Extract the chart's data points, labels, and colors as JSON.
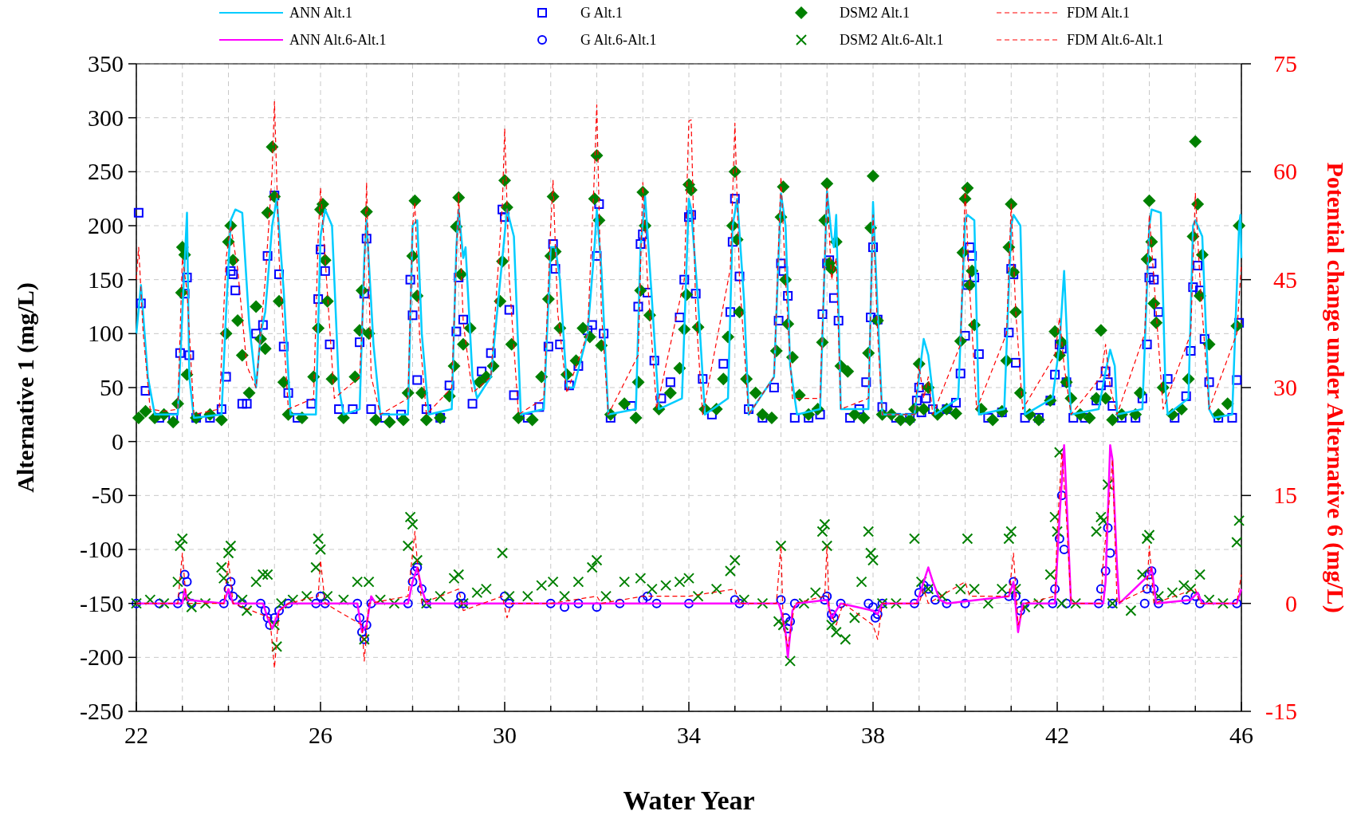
{
  "chart_data": {
    "type": "line",
    "xlabel": "Water Year",
    "ylabel": "Alternative 1 (mg/L)",
    "y2label": "Potential change under Alternative 6 (mg/L)",
    "xlim": [
      22,
      46
    ],
    "xticks": [
      22,
      {
        "value": 23,
        "label": null
      },
      {
        "value": 24,
        "label": null
      },
      {
        "value": 25,
        "label": null
      },
      26,
      {
        "value": 27,
        "label": null
      },
      {
        "value": 28,
        "label": null
      },
      {
        "value": 29,
        "label": null
      },
      30,
      {
        "value": 31,
        "label": null
      },
      {
        "value": 32,
        "label": null
      },
      {
        "value": 33,
        "label": null
      },
      34,
      {
        "value": 35,
        "label": null
      },
      {
        "value": 36,
        "label": null
      },
      {
        "value": 37,
        "label": null
      },
      38,
      {
        "value": 39,
        "label": null
      },
      {
        "value": 40,
        "label": null
      },
      {
        "value": 41,
        "label": null
      },
      42,
      {
        "value": 43,
        "label": null
      },
      {
        "value": 44,
        "label": null
      },
      {
        "value": 45,
        "label": null
      },
      46
    ],
    "ylim": [
      -250,
      350
    ],
    "yticks": [
      -250,
      -200,
      -150,
      -100,
      -50,
      0,
      50,
      100,
      150,
      200,
      250,
      300,
      350
    ],
    "y2lim": [
      -15,
      75
    ],
    "y2ticks": [
      -15,
      0,
      15,
      30,
      45,
      60,
      75
    ],
    "grid": true,
    "legend": "top",
    "series": [
      {
        "name": "ANN Alt.1",
        "color": "#00ccff",
        "marker": "none",
        "line_style": "solid",
        "x": [
          22.0,
          22.1,
          22.25,
          22.4,
          22.9,
          23.0,
          23.1,
          23.15,
          23.25,
          23.85,
          23.95,
          24.05,
          24.15,
          24.3,
          24.45,
          24.6,
          24.7,
          24.8,
          24.95,
          25.05,
          25.2,
          25.35,
          25.9,
          26.0,
          26.1,
          26.25,
          26.4,
          26.5,
          26.85,
          26.95,
          27.0,
          27.15,
          27.3,
          27.9,
          28.0,
          28.1,
          28.2,
          28.35,
          28.85,
          28.95,
          29.0,
          29.1,
          29.15,
          29.3,
          29.4,
          29.7,
          29.95,
          30.05,
          30.2,
          30.35,
          30.85,
          31.0,
          31.1,
          31.2,
          31.35,
          31.5,
          31.8,
          31.95,
          32.0,
          32.1,
          32.25,
          32.85,
          32.95,
          33.05,
          33.2,
          33.35,
          33.85,
          34.0,
          34.05,
          34.2,
          34.35,
          34.85,
          34.95,
          35.05,
          35.2,
          35.3,
          35.85,
          36.0,
          36.1,
          36.2,
          36.35,
          36.85,
          37.0,
          37.1,
          37.15,
          37.2,
          37.3,
          37.9,
          38.0,
          38.1,
          38.2,
          38.9,
          39.1,
          39.2,
          39.35,
          39.85,
          40.0,
          40.05,
          40.2,
          40.3,
          40.85,
          41.0,
          41.05,
          41.2,
          41.3,
          41.9,
          42.05,
          42.15,
          42.25,
          42.3,
          42.9,
          43.05,
          43.15,
          43.25,
          43.3,
          43.85,
          44.0,
          44.05,
          44.25,
          44.35,
          44.4,
          44.85,
          44.95,
          45.0,
          45.15,
          45.3,
          45.4,
          45.8,
          45.95,
          45.98,
          46.0
        ],
        "values": [
          100,
          145,
          60,
          25,
          25,
          120,
          212,
          60,
          22,
          25,
          120,
          205,
          215,
          212,
          110,
          50,
          100,
          120,
          200,
          225,
          140,
          25,
          25,
          190,
          215,
          200,
          50,
          25,
          30,
          170,
          205,
          90,
          25,
          25,
          200,
          205,
          100,
          25,
          30,
          180,
          215,
          170,
          180,
          60,
          40,
          60,
          170,
          215,
          190,
          25,
          30,
          180,
          180,
          150,
          50,
          50,
          100,
          180,
          215,
          160,
          25,
          30,
          180,
          227,
          130,
          30,
          40,
          225,
          215,
          130,
          25,
          40,
          200,
          225,
          130,
          25,
          60,
          230,
          200,
          70,
          25,
          30,
          232,
          190,
          180,
          210,
          30,
          30,
          222,
          120,
          25,
          25,
          95,
          80,
          25,
          40,
          205,
          210,
          205,
          25,
          30,
          200,
          210,
          200,
          25,
          40,
          90,
          158,
          60,
          25,
          30,
          65,
          85,
          70,
          25,
          30,
          200,
          215,
          212,
          50,
          25,
          40,
          200,
          205,
          190,
          30,
          22,
          25,
          200,
          210,
          170
        ]
      },
      {
        "name": "ANN Alt.6-Alt.1",
        "axis": "y2",
        "color": "#ff00ff",
        "marker": "none",
        "line_style": "solid",
        "x": [
          22.0,
          23.0,
          23.05,
          23.1,
          23.9,
          24.0,
          24.1,
          24.75,
          24.85,
          24.95,
          25.1,
          25.3,
          26.8,
          26.9,
          27.0,
          27.1,
          27.2,
          27.9,
          28.0,
          28.1,
          28.2,
          28.3,
          35.95,
          36.0,
          36.1,
          36.15,
          36.25,
          36.35,
          37.0,
          37.1,
          37.3,
          38.0,
          38.1,
          38.2,
          38.95,
          39.1,
          39.2,
          39.3,
          39.45,
          39.6,
          40.95,
          41.05,
          41.15,
          41.25,
          41.95,
          42.05,
          42.15,
          42.2,
          42.3,
          43.0,
          43.05,
          43.15,
          43.2,
          43.3,
          43.35,
          44.0,
          44.05,
          44.15,
          44.9,
          45.05,
          45.15,
          45.9,
          46.0
        ],
        "values": [
          0,
          0,
          2,
          0.5,
          0,
          2,
          0,
          0,
          -2,
          -3.5,
          -1,
          0,
          0,
          -4,
          -3,
          1,
          0,
          0,
          3,
          5,
          2,
          0,
          0,
          -1,
          -4,
          -7.5,
          -1,
          0,
          0.5,
          -2,
          0,
          -1,
          -1.5,
          0,
          0,
          3,
          5,
          3,
          0.5,
          0,
          1,
          3,
          -4,
          0,
          0,
          12,
          22,
          15,
          0,
          0,
          3,
          22,
          20,
          5,
          0,
          4,
          5,
          0,
          0.5,
          1.5,
          0,
          0,
          2
        ]
      },
      {
        "name": "G Alt.1",
        "type": "scatter",
        "color": "#0000ff",
        "marker": "square",
        "x": [
          22.05,
          22.1,
          22.2,
          22.5,
          22.8,
          22.95,
          23.05,
          23.1,
          23.15,
          23.3,
          23.6,
          23.85,
          23.95,
          24.05,
          24.1,
          24.15,
          24.3,
          24.4,
          24.6,
          24.75,
          24.85,
          25.0,
          25.1,
          25.2,
          25.3,
          25.5,
          25.8,
          25.95,
          26.0,
          26.1,
          26.2,
          26.4,
          26.7,
          26.85,
          26.95,
          27.0,
          27.1,
          27.4,
          27.75,
          27.95,
          28.0,
          28.1,
          28.3,
          28.6,
          28.8,
          28.95,
          29.0,
          29.1,
          29.3,
          29.5,
          29.7,
          29.95,
          30.0,
          30.1,
          30.2,
          30.5,
          30.75,
          30.95,
          31.05,
          31.1,
          31.2,
          31.4,
          31.6,
          31.8,
          31.9,
          32.0,
          32.05,
          32.15,
          32.3,
          32.75,
          32.9,
          32.95,
          33.0,
          33.1,
          33.25,
          33.4,
          33.6,
          33.8,
          33.9,
          34.0,
          34.05,
          34.15,
          34.3,
          34.5,
          34.75,
          34.9,
          34.95,
          35.0,
          35.1,
          35.3,
          35.6,
          35.85,
          35.95,
          36.0,
          36.05,
          36.15,
          36.3,
          36.6,
          36.85,
          36.9,
          37.0,
          37.05,
          37.15,
          37.25,
          37.5,
          37.7,
          37.85,
          37.95,
          38.0,
          38.1,
          38.2,
          38.5,
          38.8,
          38.95,
          39.0,
          39.05,
          39.15,
          39.3,
          39.6,
          39.8,
          39.9,
          40.0,
          40.05,
          40.1,
          40.15,
          40.2,
          40.3,
          40.5,
          40.8,
          40.95,
          41.0,
          41.05,
          41.1,
          41.3,
          41.6,
          41.85,
          41.95,
          42.05,
          42.1,
          42.2,
          42.35,
          42.6,
          42.85,
          42.95,
          43.05,
          43.1,
          43.2,
          43.4,
          43.7,
          43.85,
          43.95,
          44.0,
          44.05,
          44.1,
          44.2,
          44.4,
          44.55,
          44.8,
          44.9,
          44.95,
          45.05,
          45.1,
          45.2,
          45.3,
          45.5,
          45.8,
          45.9,
          45.95
        ],
        "values": [
          212,
          128,
          47,
          22,
          22,
          82,
          137,
          152,
          80,
          22,
          22,
          30,
          60,
          158,
          155,
          140,
          35,
          35,
          100,
          108,
          172,
          228,
          155,
          88,
          45,
          22,
          35,
          132,
          178,
          158,
          90,
          30,
          30,
          92,
          137,
          188,
          30,
          22,
          25,
          150,
          117,
          57,
          30,
          22,
          52,
          102,
          152,
          113,
          35,
          65,
          82,
          215,
          208,
          122,
          43,
          22,
          32,
          88,
          183,
          160,
          90,
          52,
          70,
          103,
          108,
          172,
          220,
          100,
          22,
          33,
          125,
          183,
          192,
          138,
          75,
          40,
          55,
          115,
          150,
          208,
          210,
          137,
          58,
          25,
          72,
          120,
          185,
          225,
          153,
          30,
          22,
          50,
          112,
          165,
          158,
          135,
          22,
          22,
          25,
          118,
          165,
          168,
          133,
          112,
          22,
          30,
          55,
          115,
          180,
          113,
          32,
          22,
          22,
          38,
          50,
          27,
          40,
          30,
          30,
          36,
          63,
          98,
          145,
          180,
          172,
          152,
          81,
          22,
          27,
          101,
          160,
          155,
          73,
          22,
          22,
          38,
          62,
          90,
          86,
          55,
          22,
          22,
          38,
          52,
          65,
          55,
          33,
          22,
          22,
          40,
          90,
          152,
          165,
          150,
          120,
          58,
          22,
          42,
          84,
          143,
          163,
          140,
          95,
          55,
          22,
          22,
          57,
          110
        ]
      },
      {
        "name": "G Alt.6-Alt.1",
        "type": "scatter",
        "axis": "y2",
        "color": "#0000ff",
        "marker": "circle",
        "x": [
          22.0,
          22.5,
          22.9,
          23.0,
          23.05,
          23.1,
          23.2,
          23.9,
          24.0,
          24.05,
          24.1,
          24.3,
          24.7,
          24.8,
          24.85,
          24.9,
          25.0,
          25.1,
          25.3,
          25.9,
          26.0,
          26.1,
          26.8,
          26.85,
          26.9,
          26.95,
          27.0,
          27.1,
          27.9,
          28.0,
          28.05,
          28.1,
          28.2,
          28.3,
          29.0,
          29.05,
          29.1,
          30.0,
          30.1,
          31.0,
          31.3,
          31.6,
          32.0,
          32.5,
          33.0,
          33.1,
          33.3,
          34.0,
          35.0,
          35.1,
          36.0,
          36.1,
          36.15,
          36.2,
          36.3,
          36.95,
          37.0,
          37.1,
          37.15,
          37.3,
          37.9,
          38.0,
          38.05,
          38.1,
          38.2,
          38.9,
          39.0,
          39.1,
          39.2,
          39.35,
          39.6,
          40.0,
          40.95,
          41.05,
          41.1,
          41.2,
          41.3,
          41.9,
          41.95,
          42.05,
          42.1,
          42.15,
          42.2,
          42.9,
          42.95,
          43.05,
          43.1,
          43.15,
          43.2,
          43.9,
          43.95,
          44.0,
          44.05,
          44.1,
          44.2,
          44.8,
          45.0,
          45.1,
          45.9
        ],
        "values": [
          0,
          0,
          0,
          1,
          4,
          3,
          0,
          0,
          2,
          3,
          1,
          0,
          0,
          -1,
          -2,
          -3,
          -2,
          -1,
          0,
          0,
          1,
          0,
          0,
          -2,
          -4,
          -5,
          -3,
          0,
          0,
          3,
          4.5,
          5,
          2,
          0,
          0,
          1,
          0,
          1,
          0,
          0,
          -0.5,
          0,
          -0.5,
          0,
          0.5,
          1,
          0,
          0,
          0.5,
          0,
          0.5,
          -2,
          -3.5,
          -2.5,
          0,
          0.5,
          1,
          -1.5,
          -2,
          0,
          0,
          -0.5,
          -2,
          -1.5,
          0,
          0,
          1.5,
          2.5,
          2,
          0.5,
          0,
          0,
          1,
          3,
          1,
          -1,
          0,
          0,
          2,
          9,
          15,
          7.5,
          0,
          0,
          2,
          4.5,
          10.5,
          7,
          0,
          0,
          2,
          4,
          4.5,
          2,
          0,
          0.5,
          1,
          0,
          0
        ]
      },
      {
        "name": "DSM2 Alt.1",
        "type": "scatter",
        "color": "#008000",
        "marker": "diamond",
        "x": [
          22.05,
          22.2,
          22.4,
          22.6,
          22.8,
          22.9,
          22.98,
          23.0,
          23.05,
          23.1,
          23.3,
          23.6,
          23.85,
          23.95,
          24.0,
          24.05,
          24.1,
          24.2,
          24.3,
          24.45,
          24.6,
          24.7,
          24.8,
          24.85,
          24.95,
          25.0,
          25.1,
          25.2,
          25.3,
          25.6,
          25.85,
          25.95,
          26.0,
          26.05,
          26.1,
          26.15,
          26.25,
          26.5,
          26.75,
          26.85,
          26.9,
          27.0,
          27.05,
          27.2,
          27.5,
          27.8,
          27.9,
          28.0,
          28.05,
          28.1,
          28.2,
          28.3,
          28.6,
          28.8,
          28.9,
          28.95,
          29.0,
          29.05,
          29.1,
          29.25,
          29.45,
          29.6,
          29.75,
          29.9,
          29.95,
          30.0,
          30.05,
          30.15,
          30.3,
          30.6,
          30.8,
          30.95,
          31.0,
          31.05,
          31.1,
          31.2,
          31.35,
          31.55,
          31.7,
          31.85,
          31.95,
          32.0,
          32.05,
          32.1,
          32.3,
          32.6,
          32.85,
          32.9,
          32.95,
          33.0,
          33.05,
          33.15,
          33.35,
          33.6,
          33.8,
          33.9,
          33.95,
          34.0,
          34.05,
          34.2,
          34.35,
          34.6,
          34.75,
          34.85,
          34.95,
          35.0,
          35.05,
          35.1,
          35.25,
          35.45,
          35.6,
          35.8,
          35.9,
          36.0,
          36.05,
          36.1,
          36.15,
          36.25,
          36.4,
          36.6,
          36.8,
          36.9,
          36.95,
          37.0,
          37.05,
          37.1,
          37.2,
          37.3,
          37.45,
          37.6,
          37.8,
          37.9,
          37.95,
          38.0,
          38.1,
          38.2,
          38.4,
          38.6,
          38.8,
          38.9,
          39.0,
          39.1,
          39.2,
          39.4,
          39.6,
          39.8,
          39.9,
          39.95,
          40.0,
          40.05,
          40.1,
          40.15,
          40.2,
          40.35,
          40.6,
          40.8,
          40.9,
          40.95,
          41.0,
          41.05,
          41.1,
          41.2,
          41.4,
          41.6,
          41.85,
          41.95,
          42.05,
          42.1,
          42.2,
          42.3,
          42.5,
          42.7,
          42.85,
          42.95,
          43.05,
          43.2,
          43.4,
          43.7,
          43.8,
          43.95,
          44.0,
          44.05,
          44.1,
          44.15,
          44.3,
          44.5,
          44.7,
          44.85,
          44.95,
          45.0,
          45.05,
          45.1,
          45.15,
          45.3,
          45.5,
          45.7,
          45.9,
          45.95
        ],
        "values": [
          22,
          28,
          22,
          25,
          18,
          35,
          138,
          180,
          173,
          62,
          22,
          25,
          20,
          100,
          185,
          200,
          168,
          112,
          80,
          45,
          125,
          95,
          86,
          212,
          273,
          227,
          130,
          55,
          25,
          22,
          60,
          105,
          215,
          220,
          168,
          130,
          58,
          22,
          60,
          103,
          140,
          213,
          100,
          20,
          18,
          20,
          45,
          172,
          223,
          135,
          45,
          20,
          22,
          42,
          70,
          199,
          226,
          155,
          90,
          105,
          55,
          60,
          70,
          130,
          167,
          242,
          217,
          90,
          22,
          20,
          60,
          132,
          172,
          227,
          176,
          105,
          62,
          75,
          105,
          97,
          225,
          265,
          205,
          89,
          25,
          35,
          22,
          55,
          140,
          231,
          200,
          117,
          30,
          45,
          68,
          104,
          136,
          238,
          233,
          106,
          30,
          30,
          58,
          97,
          200,
          250,
          187,
          120,
          58,
          45,
          25,
          22,
          84,
          208,
          236,
          150,
          109,
          78,
          43,
          25,
          30,
          92,
          205,
          239,
          165,
          160,
          185,
          70,
          65,
          25,
          22,
          82,
          198,
          246,
          112,
          25,
          25,
          20,
          20,
          30,
          72,
          30,
          50,
          25,
          30,
          26,
          93,
          175,
          225,
          235,
          145,
          158,
          108,
          30,
          20,
          28,
          75,
          180,
          220,
          157,
          120,
          45,
          25,
          20,
          38,
          102,
          80,
          92,
          55,
          40,
          25,
          22,
          40,
          103,
          40,
          20,
          25,
          25,
          45,
          169,
          223,
          185,
          128,
          110,
          50,
          25,
          30,
          58,
          190,
          278,
          220,
          135,
          173,
          90,
          25,
          35,
          107,
          200
        ]
      },
      {
        "name": "DSM2 Alt.6-Alt.1",
        "type": "scatter",
        "axis": "y2",
        "color": "#008000",
        "marker": "cross",
        "x": [
          22.0,
          22.3,
          22.6,
          22.9,
          22.95,
          23.0,
          23.1,
          23.2,
          23.5,
          23.85,
          23.9,
          24.0,
          24.05,
          24.3,
          24.4,
          24.6,
          24.75,
          24.85,
          25.0,
          25.05,
          25.15,
          25.4,
          25.7,
          25.9,
          25.95,
          26.0,
          26.15,
          26.5,
          26.8,
          26.95,
          27.05,
          27.3,
          27.6,
          27.9,
          27.95,
          28.0,
          28.1,
          28.3,
          28.6,
          28.9,
          29.0,
          29.1,
          29.4,
          29.6,
          29.95,
          30.1,
          30.5,
          30.8,
          31.05,
          31.3,
          31.6,
          31.9,
          32.0,
          32.2,
          32.6,
          32.95,
          33.2,
          33.5,
          33.8,
          34.0,
          34.2,
          34.6,
          34.9,
          35.0,
          35.2,
          35.6,
          35.95,
          36.0,
          36.05,
          36.2,
          36.5,
          36.75,
          36.9,
          36.95,
          37.0,
          37.1,
          37.2,
          37.4,
          37.6,
          37.75,
          37.9,
          37.95,
          38.0,
          38.2,
          38.5,
          38.9,
          39.05,
          39.2,
          39.5,
          39.9,
          40.05,
          40.2,
          40.5,
          40.8,
          40.95,
          41.0,
          41.1,
          41.3,
          41.6,
          41.85,
          41.95,
          42.0,
          42.05,
          42.1,
          42.4,
          42.85,
          42.95,
          43.0,
          43.1,
          43.2,
          43.6,
          43.85,
          43.95,
          44.0,
          44.2,
          44.5,
          44.75,
          44.9,
          45.1,
          45.3,
          45.6,
          45.9,
          45.95
        ],
        "values": [
          0,
          0.5,
          0,
          3,
          8,
          9,
          1,
          -0.5,
          0,
          5,
          3.5,
          7,
          8,
          0.5,
          -1,
          3,
          4,
          4,
          -3,
          -6,
          0,
          0.5,
          1,
          5,
          9,
          7.5,
          1,
          0.5,
          3,
          -5,
          3,
          0.5,
          0,
          8,
          12,
          11,
          6,
          0,
          1,
          3.5,
          4,
          0,
          1.5,
          2,
          7,
          1,
          1,
          2.5,
          3,
          1,
          3,
          5,
          6,
          1,
          3,
          3.5,
          2,
          2.5,
          3,
          3.5,
          1,
          2,
          4.5,
          6,
          0.5,
          0,
          -2.5,
          8,
          -3,
          -8,
          0,
          1.5,
          10,
          11,
          8,
          -3,
          -4,
          -5,
          -2,
          3,
          10,
          7,
          6,
          0,
          0,
          9,
          3,
          2,
          1,
          2,
          9,
          2,
          0,
          2,
          9,
          10,
          2,
          -0.5,
          0,
          4,
          12,
          10,
          21,
          0,
          0,
          10,
          12,
          11.5,
          16.5,
          0,
          -1,
          4,
          9,
          9.5,
          1,
          1.5,
          2.5,
          2,
          4,
          0.5,
          0,
          8.5,
          11.5
        ]
      },
      {
        "name": "FDM Alt.1",
        "color": "#ff0000",
        "marker": "none",
        "line_style": "dashed",
        "x": [
          22.0,
          22.05,
          22.15,
          22.3,
          22.6,
          22.9,
          23.0,
          23.1,
          23.25,
          23.8,
          23.95,
          24.05,
          24.2,
          24.4,
          24.6,
          24.8,
          24.95,
          25.0,
          25.1,
          25.3,
          25.85,
          25.95,
          26.0,
          26.1,
          26.3,
          26.85,
          26.95,
          27.0,
          27.1,
          27.3,
          27.9,
          28.0,
          28.05,
          28.15,
          28.3,
          28.85,
          29.0,
          29.1,
          29.3,
          29.7,
          29.95,
          30.0,
          30.1,
          30.3,
          30.85,
          31.0,
          31.05,
          31.15,
          31.35,
          31.8,
          31.95,
          32.0,
          32.1,
          32.25,
          32.9,
          33.0,
          33.1,
          33.3,
          33.9,
          34.0,
          34.05,
          34.15,
          34.3,
          34.9,
          35.0,
          35.1,
          35.3,
          35.85,
          36.0,
          36.1,
          36.25,
          36.85,
          37.0,
          37.1,
          37.2,
          37.3,
          37.9,
          38.0,
          38.1,
          38.2,
          38.9,
          39.0,
          39.1,
          39.2,
          39.3,
          39.9,
          40.0,
          40.1,
          40.25,
          40.9,
          41.0,
          41.1,
          41.25,
          41.95,
          42.05,
          42.15,
          42.3,
          42.95,
          43.05,
          43.15,
          43.3,
          43.9,
          44.0,
          44.1,
          44.3,
          44.9,
          45.0,
          45.1,
          45.3,
          45.9,
          46.0
        ],
        "values": [
          150,
          180,
          100,
          30,
          28,
          30,
          170,
          140,
          25,
          30,
          170,
          200,
          160,
          70,
          50,
          150,
          250,
          315,
          170,
          30,
          40,
          190,
          235,
          170,
          40,
          60,
          150,
          240,
          60,
          25,
          40,
          200,
          222,
          100,
          25,
          50,
          230,
          110,
          45,
          60,
          220,
          290,
          150,
          25,
          40,
          200,
          242,
          120,
          45,
          100,
          250,
          312,
          120,
          25,
          80,
          240,
          150,
          30,
          150,
          297,
          298,
          120,
          25,
          160,
          295,
          150,
          25,
          60,
          245,
          150,
          40,
          40,
          235,
          150,
          170,
          30,
          40,
          210,
          100,
          25,
          25,
          70,
          40,
          60,
          25,
          90,
          235,
          140,
          30,
          100,
          220,
          120,
          30,
          80,
          115,
          70,
          25,
          60,
          90,
          50,
          25,
          100,
          210,
          150,
          30,
          100,
          230,
          150,
          30,
          100,
          165
        ]
      },
      {
        "name": "FDM Alt.6-Alt.1",
        "axis": "y2",
        "color": "#ff0000",
        "marker": "none",
        "line_style": "dashed",
        "x": [
          22.0,
          22.9,
          23.0,
          23.05,
          23.1,
          23.9,
          24.0,
          24.1,
          24.9,
          25.0,
          25.1,
          25.3,
          25.95,
          26.0,
          26.1,
          26.9,
          26.95,
          27.05,
          27.9,
          28.0,
          28.05,
          28.1,
          28.2,
          29.0,
          29.1,
          29.95,
          30.05,
          30.15,
          31.0,
          32.0,
          32.1,
          33.0,
          34.0,
          35.0,
          35.1,
          35.9,
          36.0,
          36.05,
          36.15,
          36.3,
          36.95,
          37.0,
          37.05,
          37.2,
          37.35,
          38.0,
          38.1,
          38.2,
          39.0,
          39.1,
          39.2,
          40.0,
          40.1,
          40.95,
          41.05,
          41.15,
          41.3,
          41.95,
          42.0,
          42.1,
          42.2,
          42.3,
          42.95,
          43.0,
          43.1,
          43.2,
          43.3,
          43.95,
          44.0,
          44.1,
          45.0,
          45.1,
          45.9,
          46.0
        ],
        "values": [
          0,
          0,
          7,
          3,
          0,
          0,
          6,
          0,
          -2,
          -9,
          -1,
          0,
          1,
          6,
          0,
          -3,
          -8,
          0,
          1,
          7,
          10,
          6,
          0,
          2,
          -1,
          1,
          -2,
          0,
          0,
          1,
          0,
          1,
          1,
          2,
          0,
          0,
          8,
          -3,
          -6,
          0,
          1,
          8,
          -1,
          -3,
          0,
          -3,
          -5,
          0,
          0,
          2,
          0,
          3,
          1,
          1,
          7,
          -3,
          0,
          1,
          10,
          21,
          12,
          0,
          0,
          6,
          12,
          20,
          0,
          2,
          8,
          0,
          2,
          0,
          0,
          4
        ]
      }
    ]
  }
}
